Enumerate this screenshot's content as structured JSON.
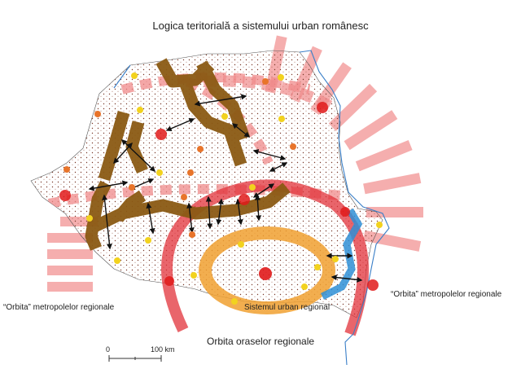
{
  "title": "Logica teritorială a sistemului urban românesc",
  "labels": {
    "metro_orbit_left": "“Orbita” metropolelor regionale",
    "metro_orbit_right": "“Orbita” metropolelor regionale",
    "regional_urban_system": "Sistemul urban regional",
    "regional_cities_orbit": "Orbita oraselor regionale"
  },
  "scale_bar": {
    "zero": "0",
    "distance": "100 km"
  },
  "colors": {
    "corridor_brown": "#8b5a14",
    "orbit_pink": "#f08080",
    "orbit_red": "#e2323a",
    "regional_orange": "#f0a030",
    "danube_blue": "#2f8fd6",
    "border_line": "#3a7fc8",
    "metropolis_red": "#e01a1a",
    "city_yellow": "#f2d21e",
    "city_orange": "#e8742a",
    "dot_dark": "#6b2a1a"
  },
  "legend_icons": [
    "metropolis-marker-icon",
    "regional-city-marker-icon",
    "link-arrow-icon"
  ]
}
